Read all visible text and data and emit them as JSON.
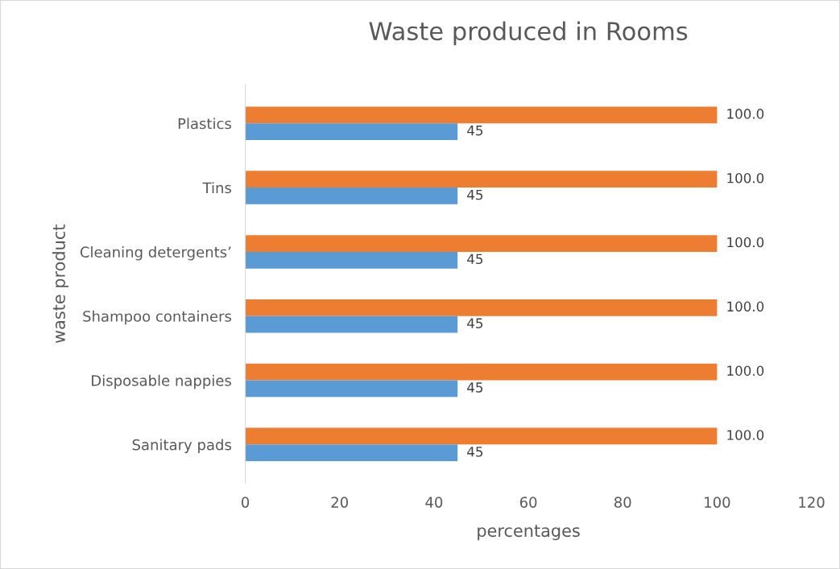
{
  "chart_data": {
    "type": "bar",
    "orientation": "horizontal",
    "title": "Waste produced in Rooms",
    "xlabel": "percentages",
    "ylabel": "waste product",
    "categories": [
      "Plastics",
      "Tins",
      "Cleaning detergents’",
      "Shampoo containers",
      "Disposable nappies",
      "Sanitary pads"
    ],
    "series": [
      {
        "color": "#ed7d31",
        "values": [
          100.0,
          100.0,
          100.0,
          100.0,
          100.0,
          100.0
        ],
        "value_labels": [
          "100.0",
          "100.0",
          "100.0",
          "100.0",
          "100.0",
          "100.0"
        ]
      },
      {
        "color": "#5b9bd5",
        "values": [
          45,
          45,
          45,
          45,
          45,
          45
        ],
        "value_labels": [
          "45",
          "45",
          "45",
          "45",
          "45",
          "45"
        ]
      }
    ],
    "xlim": [
      0,
      120
    ],
    "xticks": [
      0,
      20,
      40,
      60,
      80,
      100,
      120
    ],
    "grid": false,
    "legend": false
  }
}
